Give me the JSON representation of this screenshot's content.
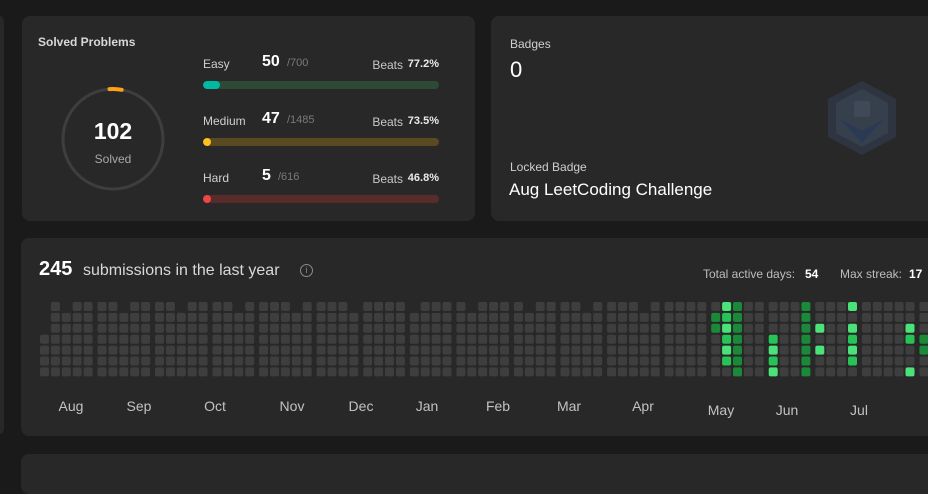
{
  "solved": {
    "title": "Solved Problems",
    "total": "102",
    "total_label": "Solved",
    "difficulties": [
      {
        "name": "Easy",
        "count": "50",
        "total": "/700",
        "beats_label": "Beats",
        "beats": "77.2%",
        "progress": 0.071,
        "color": "#00b8a3",
        "track": "#2c4a36"
      },
      {
        "name": "Medium",
        "count": "47",
        "total": "/1485",
        "beats_label": "Beats",
        "beats": "73.5%",
        "progress": 0.032,
        "color": "#ffc01e",
        "track": "#5a4a22"
      },
      {
        "name": "Hard",
        "count": "5",
        "total": "/616",
        "beats_label": "Beats",
        "beats": "46.8%",
        "progress": 0.008,
        "color": "#ef4743",
        "track": "#5a2b2b"
      }
    ]
  },
  "badges": {
    "label": "Badges",
    "count": "0",
    "locked_label": "Locked Badge",
    "locked_name": "Aug LeetCoding Challenge"
  },
  "submissions": {
    "count": "245",
    "text": "submissions in the last year",
    "info_glyph": "i",
    "active_days_label": "Total active days:",
    "active_days": "54",
    "max_streak_label": "Max streak:",
    "max_streak": "17",
    "months": [
      "Aug",
      "Sep",
      "Oct",
      "Nov",
      "Dec",
      "Jan",
      "Feb",
      "Mar",
      "Apr",
      "May",
      "Jun",
      "Jul"
    ]
  }
}
